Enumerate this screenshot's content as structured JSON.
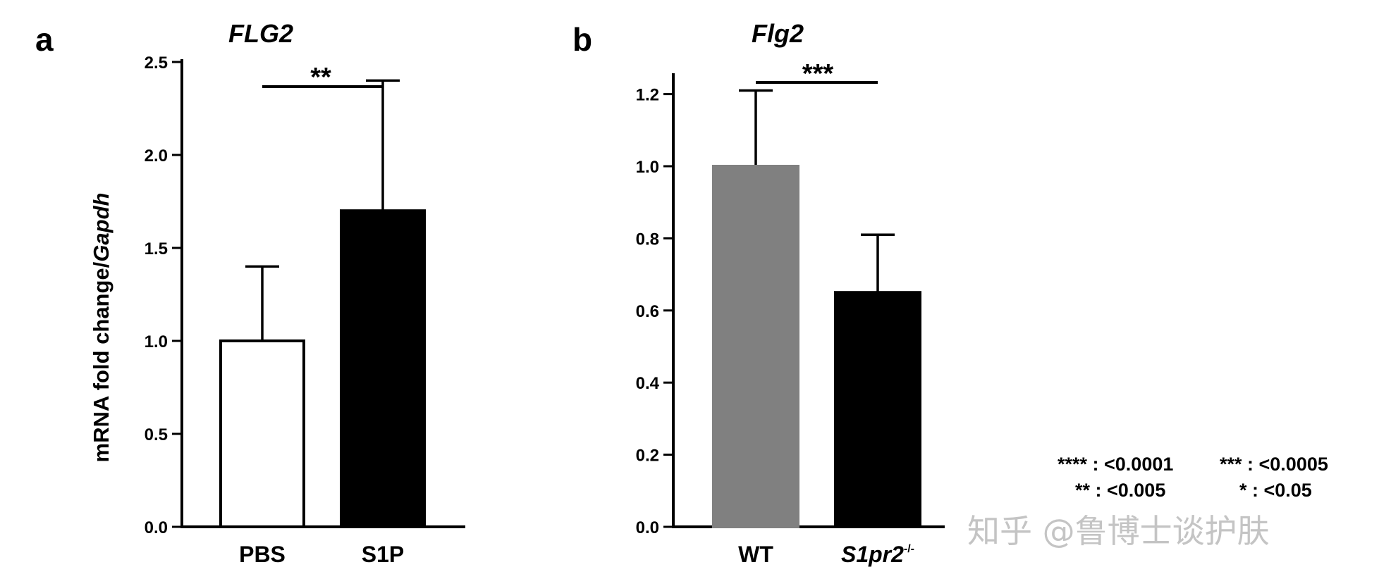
{
  "chart_data": [
    {
      "panel": "a",
      "type": "bar",
      "title": "FLG2",
      "ylabel": "mRNA fold change/",
      "ylabel_italic": "Gapdh",
      "ylim": [
        0,
        2.5
      ],
      "yticks": [
        0.0,
        0.5,
        1.0,
        1.5,
        2.0,
        2.5
      ],
      "ytick_labels": [
        "0.0",
        "0.5",
        "1.0",
        "1.5",
        "2.0",
        "2.5"
      ],
      "categories": [
        "PBS",
        "S1P"
      ],
      "values": [
        1.0,
        1.7
      ],
      "errors": [
        0.4,
        0.7
      ],
      "colors": [
        "#ffffff",
        "#000000"
      ],
      "significance": {
        "label": "**",
        "between": [
          0,
          1
        ]
      }
    },
    {
      "panel": "b",
      "type": "bar",
      "title": "Flg2",
      "ylabel": "",
      "ylim": [
        0,
        1.25
      ],
      "yticks": [
        0.0,
        0.2,
        0.4,
        0.6,
        0.8,
        1.0,
        1.2
      ],
      "ytick_labels": [
        "0.0",
        "0.2",
        "0.4",
        "0.6",
        "0.8",
        "1.0",
        "1.2"
      ],
      "categories": [
        "WT",
        "S1pr2"
      ],
      "category_superscripts": [
        "",
        "-/-"
      ],
      "values": [
        1.0,
        0.65
      ],
      "errors": [
        0.21,
        0.16
      ],
      "colors": [
        "#808080",
        "#000000"
      ],
      "significance": {
        "label": "***",
        "between": [
          0,
          1
        ]
      }
    }
  ],
  "legend": [
    "**** : <0.0001",
    "*** : <0.0005",
    "** : <0.005",
    "* : <0.05"
  ],
  "watermark": "知乎 @鲁博士谈护肤"
}
